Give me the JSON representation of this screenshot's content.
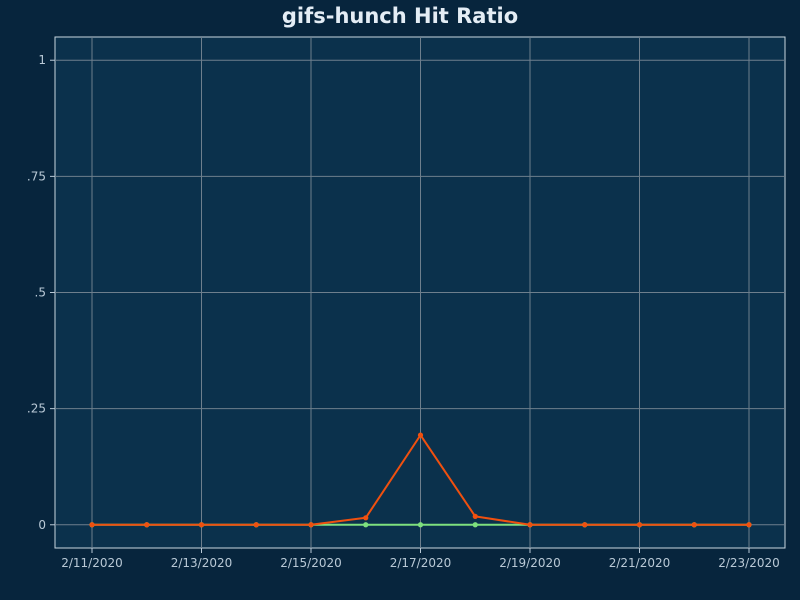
{
  "chart_data": {
    "type": "line",
    "title": "gifs-hunch Hit Ratio",
    "xlabel": "",
    "ylabel": "",
    "x": [
      "2/11/2020",
      "2/12/2020",
      "2/13/2020",
      "2/14/2020",
      "2/15/2020",
      "2/16/2020",
      "2/17/2020",
      "2/18/2020",
      "2/19/2020",
      "2/20/2020",
      "2/21/2020",
      "2/22/2020",
      "2/23/2020"
    ],
    "x_tick_labels": [
      "2/11/2020",
      "2/13/2020",
      "2/15/2020",
      "2/17/2020",
      "2/19/2020",
      "2/21/2020",
      "2/23/2020"
    ],
    "y_tick_values": [
      0,
      0.25,
      0.5,
      0.75,
      1
    ],
    "y_tick_labels": [
      "0",
      ".25",
      ".5",
      ".75",
      "1"
    ],
    "ylim": [
      -0.05,
      1.05
    ],
    "grid": true,
    "series": [
      {
        "color": "#7ee07e",
        "values": [
          0,
          0,
          0,
          0,
          0,
          0,
          0,
          0,
          0,
          0,
          0,
          0,
          0
        ]
      },
      {
        "color": "#f0500f",
        "values": [
          0,
          0,
          0,
          0,
          0,
          0.015,
          0.193,
          0.018,
          0,
          0,
          0,
          0,
          0
        ]
      }
    ],
    "colors": {
      "background": "#07253d",
      "plot_background": "#0b314c",
      "grid": "#6e7f8d",
      "axis": "#b9c9d6"
    }
  }
}
